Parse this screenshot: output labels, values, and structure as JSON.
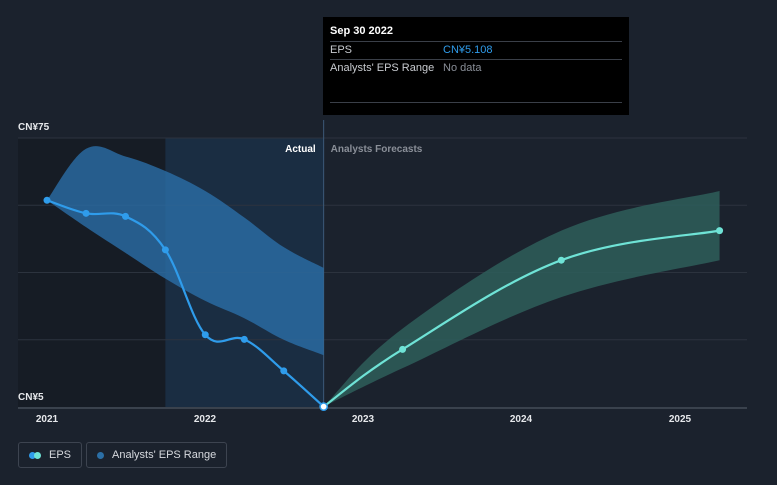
{
  "tooltip": {
    "date": "Sep 30 2022",
    "rows": [
      {
        "label": "EPS",
        "value": "CN¥5.108"
      },
      {
        "label": "Analysts' EPS Range",
        "value": "No data"
      }
    ]
  },
  "legend": [
    {
      "label": "EPS",
      "colors": [
        "#2f9ceb",
        "#6fe3d6"
      ]
    },
    {
      "label": "Analysts' EPS Range",
      "colors": [
        "#2b6fa6"
      ]
    }
  ],
  "colors": {
    "eps_actual": "#2f9ceb",
    "eps_forecast": "#6fe3d6",
    "range_actual": "#2a6ea7",
    "range_forecast": "#2e5e5a",
    "grid": "#2c333e"
  },
  "chart_data": {
    "type": "line",
    "y_tick_labels": [
      "CN¥75",
      "CN¥5"
    ],
    "x_tick_labels": [
      "2021",
      "2022",
      "2023",
      "2024",
      "2025"
    ],
    "ylim": [
      5,
      75
    ],
    "region_labels": {
      "actual": "Actual",
      "forecast": "Analysts Forecasts"
    },
    "series": [
      {
        "name": "EPS",
        "segment": "actual",
        "x": [
          "2020-12-31",
          "2021-03-31",
          "2021-06-30",
          "2021-09-30",
          "2021-12-31",
          "2022-03-31",
          "2022-06-30",
          "2022-09-30"
        ],
        "values": [
          58.8,
          55.4,
          54.6,
          45.9,
          23.8,
          22.6,
          14.4,
          5.1
        ]
      },
      {
        "name": "EPS",
        "segment": "forecast",
        "x": [
          "2022-09-30",
          "2023-03-31",
          "2024-03-31",
          "2025-03-31"
        ],
        "values": [
          5.1,
          20.0,
          43.2,
          50.9
        ]
      }
    ],
    "ranges": [
      {
        "name": "Analysts' EPS Range",
        "segment": "actual",
        "x": [
          "2020-12-31",
          "2021-03-31",
          "2021-06-30",
          "2021-09-30",
          "2021-12-31",
          "2022-03-31",
          "2022-06-30",
          "2022-09-30"
        ],
        "high": [
          58.8,
          72.2,
          70.2,
          66.4,
          61.2,
          54.3,
          46.6,
          41.2
        ],
        "low": [
          58.8,
          51.8,
          45.1,
          38.4,
          32.6,
          28.1,
          22.5,
          18.5
        ]
      },
      {
        "name": "Analysts' EPS Range",
        "segment": "forecast",
        "x": [
          "2022-09-30",
          "2023-03-31",
          "2024-03-31",
          "2025-03-31"
        ],
        "high": [
          5.1,
          25.4,
          50.9,
          61.2
        ],
        "low": [
          5.1,
          15.1,
          33.6,
          43.2
        ]
      }
    ]
  }
}
